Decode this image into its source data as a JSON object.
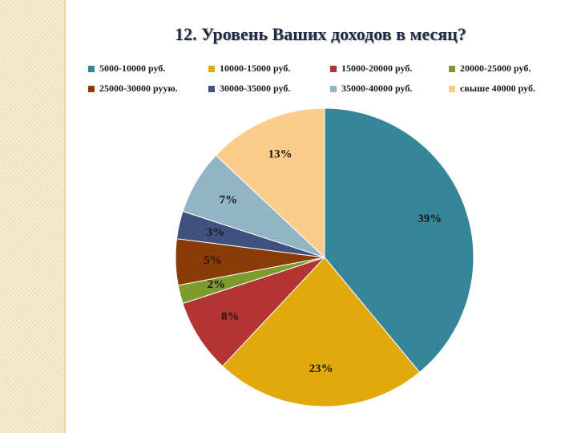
{
  "title": "12. Уровень Ваших доходов в месяц?",
  "chart_data": {
    "type": "pie",
    "title": "12. Уровень Ваших доходов в месяц?",
    "legend_position": "top",
    "start": "12 o'clock, clockwise",
    "slices": [
      {
        "label": "5000-10000 руб.",
        "value": 39,
        "value_label": "39%",
        "color": "#36869a"
      },
      {
        "label": "10000-15000 руб.",
        "value": 23,
        "value_label": "23%",
        "color": "#e2a90c"
      },
      {
        "label": "15000-20000 руб.",
        "value": 8,
        "value_label": "8%",
        "color": "#b23433"
      },
      {
        "label": "20000-25000 руб.",
        "value": 2,
        "value_label": "2%",
        "color": "#7e9b2d"
      },
      {
        "label": "25000-30000 руую.",
        "value": 5,
        "value_label": "5%",
        "color": "#8a3c06"
      },
      {
        "label": "30000-35000 руб.",
        "value": 3,
        "value_label": "3%",
        "color": "#3f517f"
      },
      {
        "label": "35000-40000 руб.",
        "value": 7,
        "value_label": "7%",
        "color": "#92b4c5"
      },
      {
        "label": "свыше 40000 руб.",
        "value": 13,
        "value_label": "13%",
        "color": "#fccd8a"
      }
    ]
  }
}
